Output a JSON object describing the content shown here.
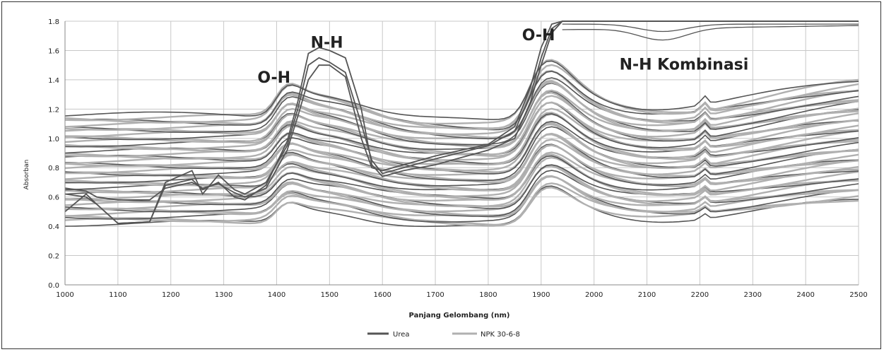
{
  "chart_data": {
    "type": "line",
    "xlabel": "Panjang Gelombang (nm)",
    "ylabel": "Absorban",
    "xlim": [
      1000,
      2500
    ],
    "ylim": [
      0.0,
      1.8
    ],
    "xticks": [
      1000,
      1100,
      1200,
      1300,
      1400,
      1500,
      1600,
      1700,
      1800,
      1900,
      2000,
      2100,
      2200,
      2300,
      2400,
      2500
    ],
    "yticks": [
      "0.0",
      "0.2",
      "0.4",
      "0.6",
      "0.8",
      "1.0",
      "1.2",
      "1.4",
      "1.6",
      "1.8"
    ],
    "grid": "on",
    "legend_position": "bottom",
    "series": [
      {
        "name": "Urea",
        "color": "#555555"
      },
      {
        "name": "NPK 30-6-8",
        "color": "#b0b0b0"
      }
    ],
    "annotations": [
      {
        "text": "O-H",
        "x": 1395,
        "y": 1.38
      },
      {
        "text": "N-H",
        "x": 1495,
        "y": 1.62
      },
      {
        "text": "O-H",
        "x": 1895,
        "y": 1.67
      },
      {
        "text": "N-H Kombinasi",
        "x": 2170,
        "y": 1.47
      }
    ],
    "urea_spectra": {
      "x": [
        1000,
        1040,
        1060,
        1100,
        1160,
        1190,
        1240,
        1260,
        1290,
        1320,
        1340,
        1380,
        1420,
        1440,
        1460,
        1480,
        1500,
        1530,
        1560,
        1580,
        1600,
        1640,
        1700,
        1800,
        1850,
        1880,
        1900,
        1920,
        1940,
        1960,
        2000,
        2100,
        2200,
        2300,
        2400,
        2500
      ],
      "curves": [
        [
          0.5,
          0.62,
          0.55,
          0.42,
          0.43,
          0.7,
          0.78,
          0.62,
          0.75,
          0.65,
          0.62,
          0.7,
          0.95,
          1.2,
          1.5,
          1.55,
          1.52,
          1.45,
          1.1,
          0.85,
          0.76,
          0.8,
          0.86,
          0.95,
          1.05,
          1.3,
          1.55,
          1.75,
          1.8,
          1.8,
          1.8,
          1.8,
          1.8,
          1.8,
          1.8,
          1.8
        ],
        [
          0.62,
          0.6,
          0.55,
          0.42,
          0.43,
          0.68,
          0.72,
          0.65,
          0.7,
          0.6,
          0.58,
          0.68,
          0.98,
          1.25,
          1.58,
          1.62,
          1.6,
          1.55,
          1.2,
          0.82,
          0.74,
          0.78,
          0.82,
          0.92,
          1.0,
          1.25,
          1.5,
          1.72,
          1.8,
          1.8,
          1.8,
          1.8,
          1.8,
          1.8,
          1.8,
          1.8
        ],
        [
          0.66,
          0.64,
          0.6,
          0.58,
          0.58,
          0.66,
          0.7,
          0.66,
          0.69,
          0.63,
          0.6,
          0.66,
          0.92,
          1.15,
          1.4,
          1.5,
          1.5,
          1.42,
          1.0,
          0.8,
          0.78,
          0.82,
          0.88,
          0.96,
          1.08,
          1.35,
          1.62,
          1.78,
          1.8,
          1.8,
          1.8,
          1.8,
          1.8,
          1.8,
          1.8,
          1.8
        ]
      ]
    }
  }
}
